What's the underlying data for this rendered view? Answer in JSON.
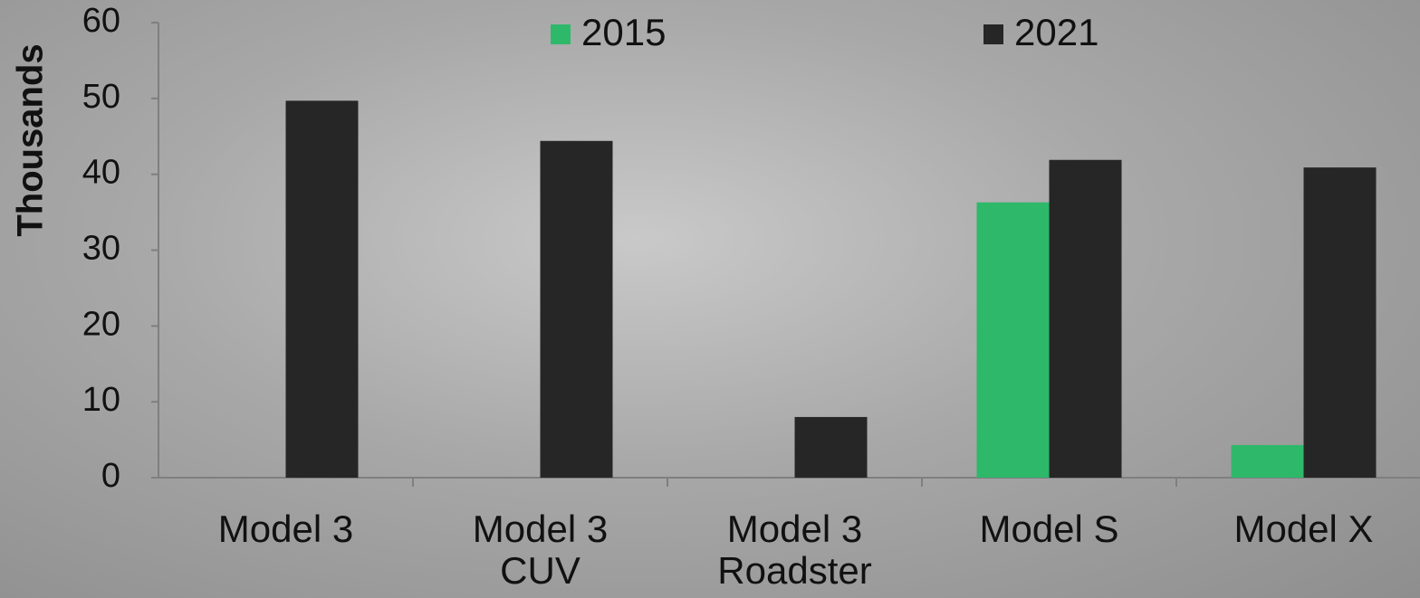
{
  "chart_data": {
    "type": "bar",
    "y_axis_label": "Thousands",
    "categories": [
      "Model 3",
      "Model 3 CUV",
      "Model 3 Roadster",
      "Model S",
      "Model X"
    ],
    "series": [
      {
        "name": "2015",
        "color": "#2eb86a",
        "values": [
          null,
          null,
          null,
          36.3,
          4.3
        ]
      },
      {
        "name": "2021",
        "color": "#262626",
        "values": [
          49.7,
          44.4,
          8.0,
          41.9,
          40.9
        ]
      }
    ],
    "ylim": [
      0,
      60
    ],
    "yticks": [
      0,
      10,
      20,
      30,
      40,
      50,
      60
    ],
    "grid": false,
    "legend": "top"
  }
}
